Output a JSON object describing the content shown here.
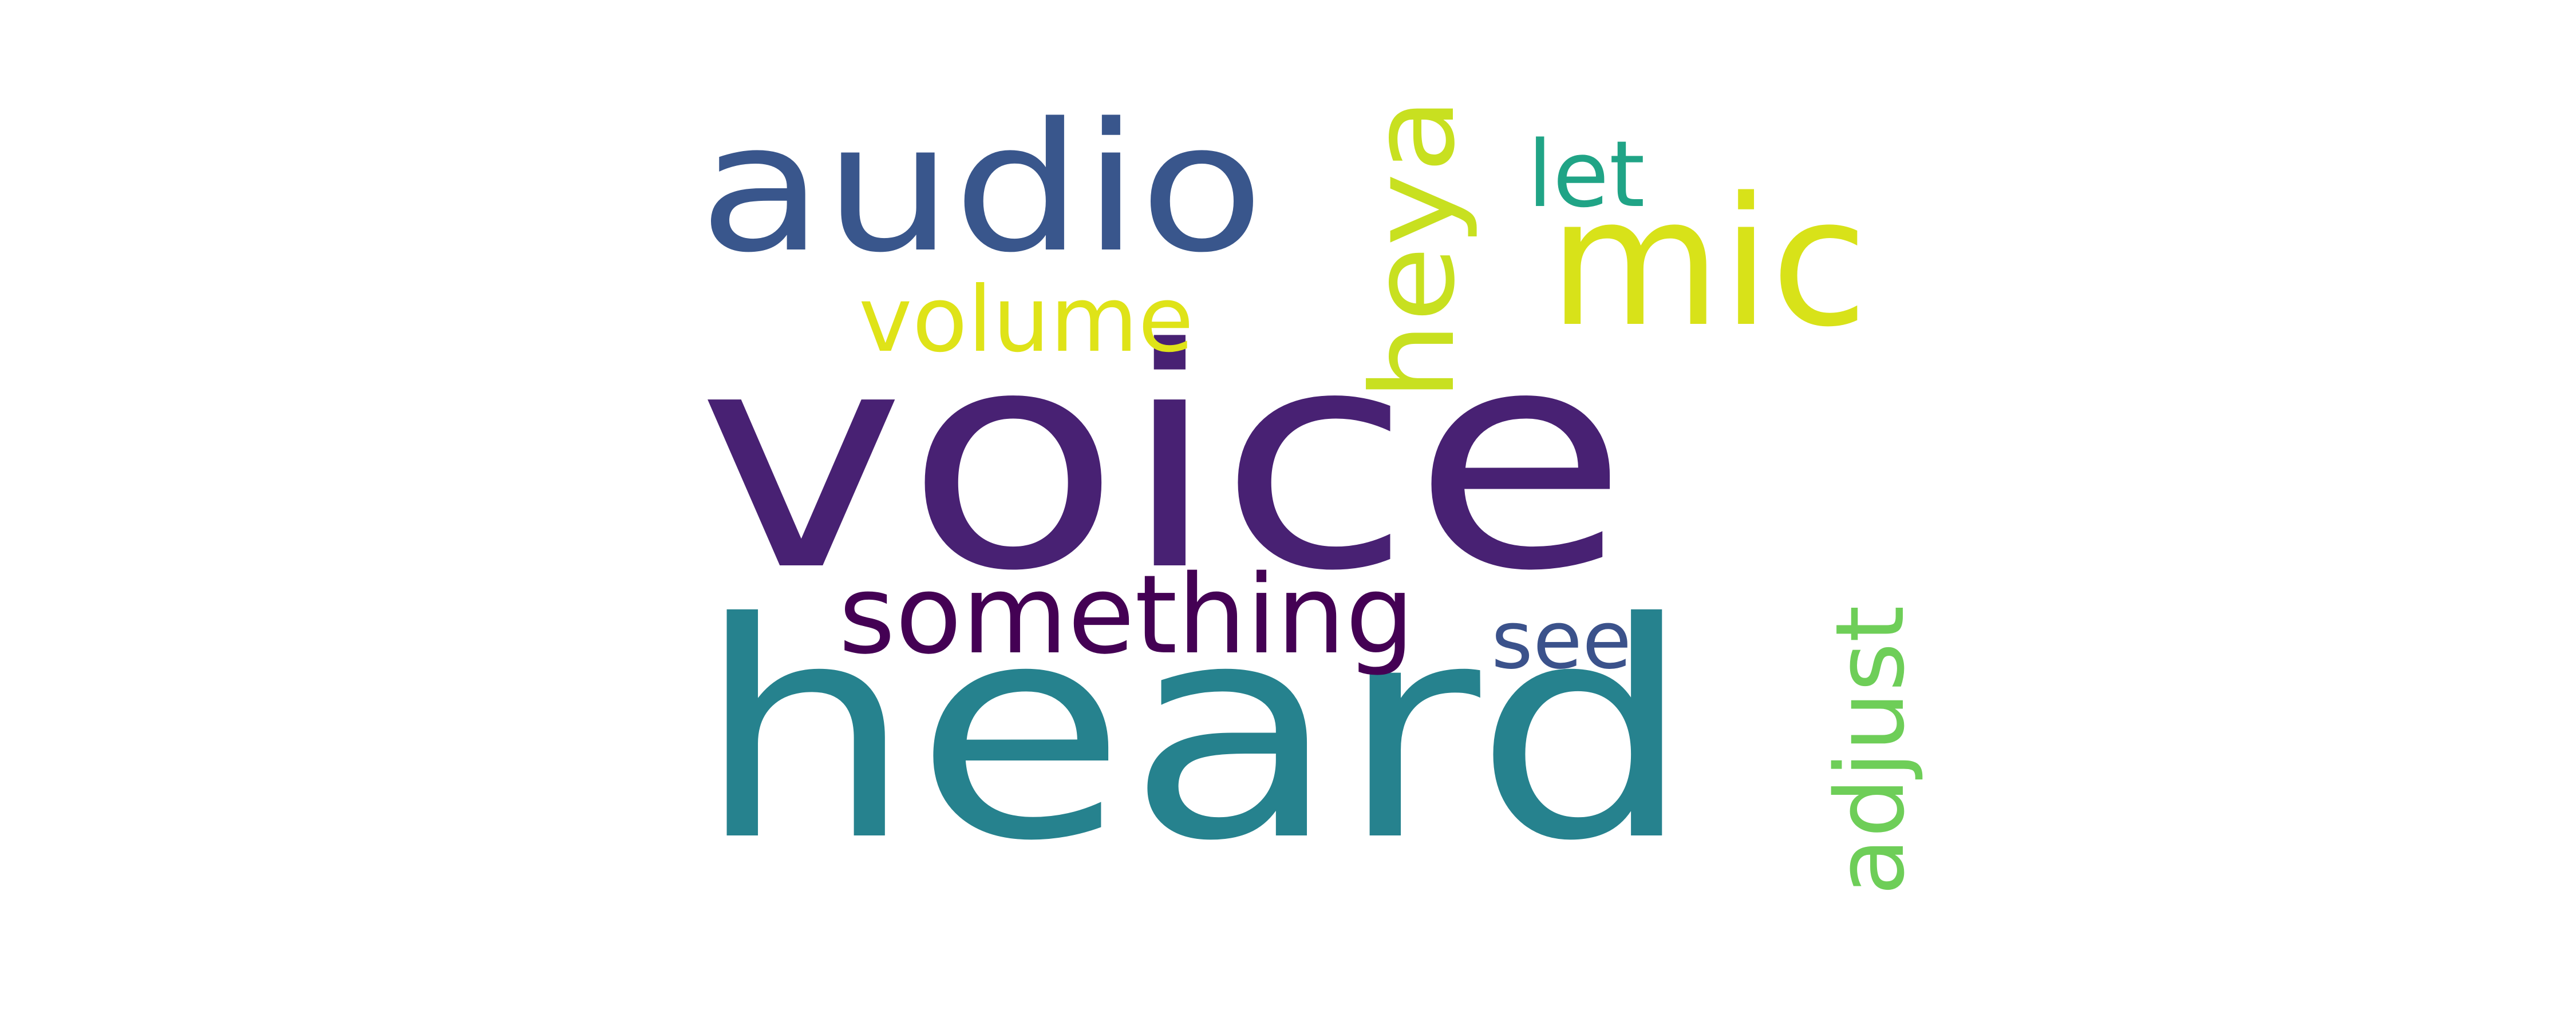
{
  "words": [
    {
      "id": "voice",
      "text": "voice",
      "color": "#482173",
      "rotated": false
    },
    {
      "id": "heard",
      "text": "heard",
      "color": "#26828e",
      "rotated": false
    },
    {
      "id": "audio",
      "text": "audio",
      "color": "#39568c",
      "rotated": false
    },
    {
      "id": "mic",
      "text": "mic",
      "color": "#d8e219",
      "rotated": false
    },
    {
      "id": "heya",
      "text": "heya",
      "color": "#c8e020",
      "rotated": true
    },
    {
      "id": "let",
      "text": "let",
      "color": "#20a486",
      "rotated": false
    },
    {
      "id": "volume",
      "text": "volume",
      "color": "#dfe318",
      "rotated": false
    },
    {
      "id": "something",
      "text": "something",
      "color": "#440154",
      "rotated": false
    },
    {
      "id": "see",
      "text": "see",
      "color": "#3b528b",
      "rotated": false
    },
    {
      "id": "adjust",
      "text": "adjust",
      "color": "#6ece58",
      "rotated": true
    }
  ]
}
